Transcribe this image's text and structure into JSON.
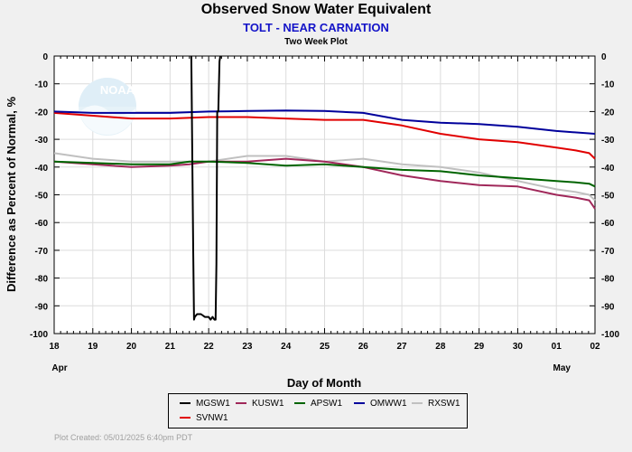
{
  "header": {
    "title": "Observed Snow Water Equivalent",
    "subtitle": "TOLT - NEAR CARNATION",
    "plot_type": "Two Week Plot"
  },
  "logo_text": "NOAA",
  "footer": "Plot Created: 05/01/2025 6:40pm PDT",
  "colors": {
    "MGSW1": "#000000",
    "KUSW1": "#a0285a",
    "APSW1": "#006400",
    "OMWW1": "#00009b",
    "RXSW1": "#c0c0c0",
    "SVNW1": "#e10000"
  },
  "chart_data": {
    "type": "line",
    "title": "Observed Snow Water Equivalent",
    "subtitle": "TOLT - NEAR CARNATION",
    "xlabel": "Day of Month",
    "ylabel": "Difference as Percent of Normal, %",
    "x_tick_labels": [
      "18",
      "19",
      "20",
      "21",
      "22",
      "23",
      "24",
      "25",
      "26",
      "27",
      "28",
      "29",
      "30",
      "01",
      "02"
    ],
    "x_month_labels": [
      {
        "label": "Apr",
        "at": 0
      },
      {
        "label": "May",
        "at": 13
      }
    ],
    "x_range": [
      0,
      14
    ],
    "ylim": [
      -100,
      0
    ],
    "y_ticks": [
      0,
      -10,
      -20,
      -30,
      -40,
      -50,
      -60,
      -70,
      -80,
      -90,
      -100
    ],
    "grid": true,
    "legend_position": "bottom",
    "series": [
      {
        "name": "MGSW1",
        "x": [
          3.55,
          3.6,
          3.62,
          3.64,
          3.7,
          3.8,
          3.9,
          4.0,
          4.05,
          4.1,
          4.15,
          4.18,
          4.2,
          4.22,
          4.25,
          4.28,
          4.3
        ],
        "y": [
          0,
          -70,
          -95,
          -94,
          -93,
          -93,
          -94,
          -94,
          -95,
          -94,
          -95,
          -95,
          -75,
          -20,
          -20,
          -2,
          0
        ]
      },
      {
        "name": "KUSW1",
        "x": [
          0,
          1,
          2,
          3,
          3.5,
          4,
          5,
          6,
          7,
          7.5,
          8,
          9,
          10,
          11,
          12,
          13,
          13.5,
          13.85,
          14
        ],
        "y": [
          -38,
          -39,
          -40,
          -39.5,
          -39,
          -38,
          -38,
          -37,
          -38,
          -39,
          -40,
          -43,
          -45,
          -46.5,
          -47,
          -50,
          -51,
          -52,
          -55
        ]
      },
      {
        "name": "APSW1",
        "x": [
          0,
          1,
          2,
          3,
          3.5,
          4,
          5,
          6,
          7,
          8,
          9,
          10,
          11,
          12,
          13,
          13.5,
          13.85,
          14
        ],
        "y": [
          -38,
          -38.5,
          -39,
          -39,
          -38,
          -38,
          -38.5,
          -39.5,
          -39,
          -40,
          -41,
          -41.5,
          -43,
          -44,
          -45,
          -45.5,
          -46,
          -47
        ]
      },
      {
        "name": "OMWW1",
        "x": [
          0,
          1,
          2,
          3,
          4,
          5,
          6,
          7,
          8,
          9,
          10,
          11,
          12,
          13,
          14
        ],
        "y": [
          -20,
          -20.5,
          -20.5,
          -20.5,
          -20,
          -19.8,
          -19.6,
          -19.8,
          -20.5,
          -23,
          -24,
          -24.5,
          -25.5,
          -27,
          -28
        ]
      },
      {
        "name": "RXSW1",
        "x": [
          0,
          1,
          2,
          3,
          4,
          5,
          6,
          7,
          8,
          9,
          10,
          11,
          12,
          13,
          13.5,
          13.85,
          14
        ],
        "y": [
          -35,
          -37,
          -38,
          -38,
          -38,
          -36,
          -36,
          -38,
          -37,
          -39,
          -40,
          -42,
          -45,
          -48,
          -49,
          -50,
          -52
        ]
      },
      {
        "name": "SVNW1",
        "x": [
          0,
          1,
          2,
          3,
          4,
          5,
          6,
          7,
          8,
          9,
          10,
          11,
          12,
          13,
          13.5,
          13.85,
          14
        ],
        "y": [
          -20.5,
          -21.5,
          -22.5,
          -22.5,
          -22,
          -22,
          -22.5,
          -23,
          -23,
          -25,
          -28,
          -30,
          -31,
          -33,
          -34,
          -35,
          -37
        ]
      }
    ]
  }
}
